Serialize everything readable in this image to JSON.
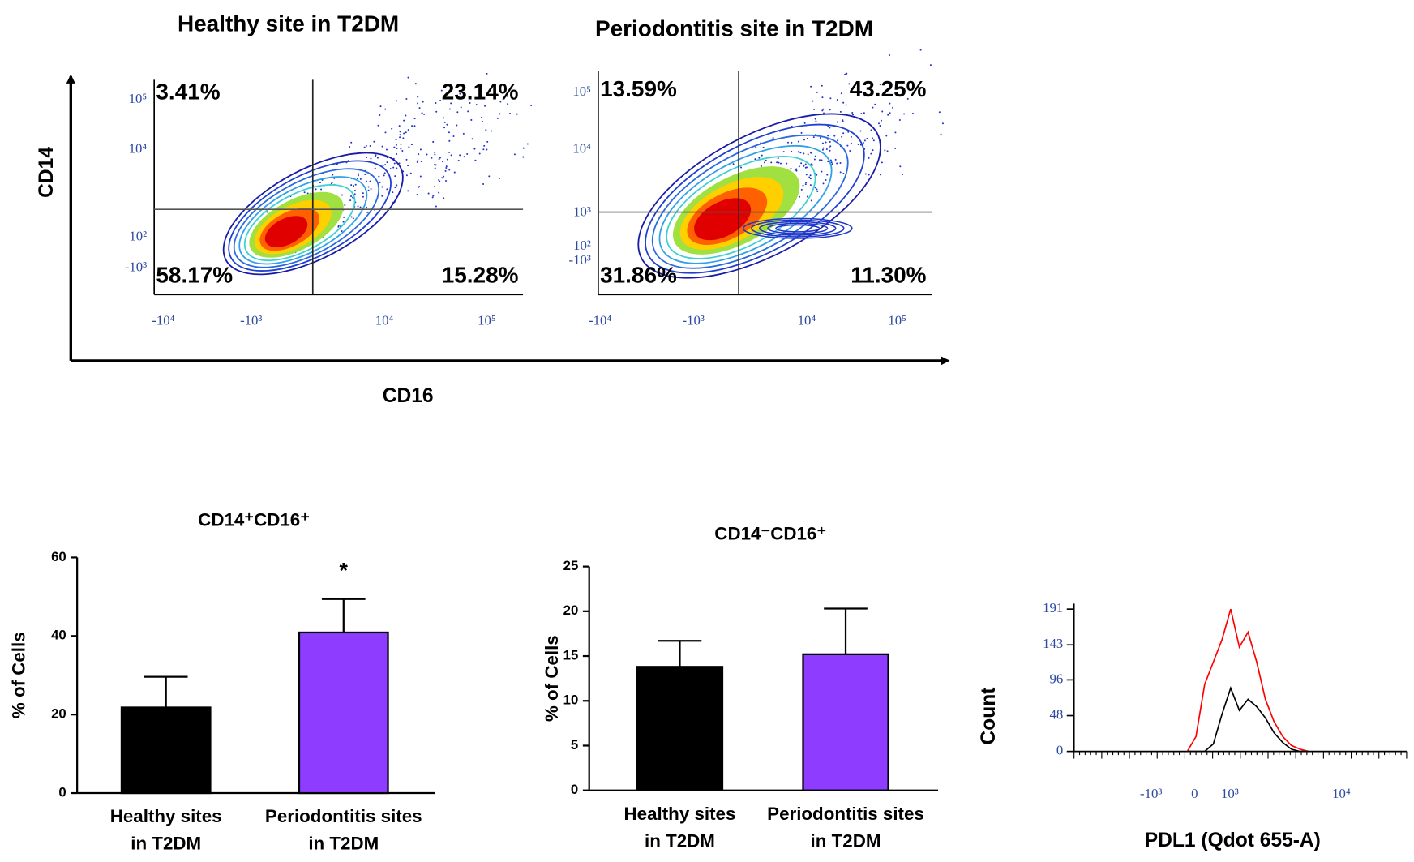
{
  "figure": {
    "y_label": "CD14",
    "x_label": "CD16"
  },
  "chart_data": [
    {
      "type": "flow",
      "title": "Healthy site in T2DM",
      "quadrants": [
        "3.41%",
        "23.14%",
        "58.17%",
        "15.28%"
      ],
      "xtick_labels": [
        "-10⁴",
        "-10³",
        "10⁴",
        "10⁵"
      ],
      "ytick_labels": [
        "10⁵",
        "10⁴",
        "10²",
        "-10³"
      ]
    },
    {
      "type": "flow",
      "title": "Periodontitis site in T2DM",
      "quadrants": [
        "13.59%",
        "43.25%",
        "31.86%",
        "11.30%"
      ],
      "xtick_labels": [
        "-10⁴",
        "-10³",
        "10⁴",
        "10⁵"
      ],
      "ytick_labels": [
        "10⁵",
        "10⁴",
        "10³",
        "10²",
        "-10³"
      ]
    },
    {
      "type": "bar",
      "title": "CD14⁺CD16⁺",
      "y_label": "% of Cells",
      "categories": [
        [
          "Healthy sites",
          "in T2DM"
        ],
        [
          "Periodontitis sites",
          "in T2DM"
        ]
      ],
      "values": [
        21.8,
        40.9
      ],
      "errors": [
        7.8,
        8.5
      ],
      "colors": [
        "#000000",
        "#8e3cff"
      ],
      "annotations": [
        "",
        "*"
      ],
      "ylim": [
        0,
        60
      ],
      "yticks": [
        0,
        20,
        40,
        60
      ]
    },
    {
      "type": "bar",
      "title": "CD14⁻CD16⁺",
      "y_label": "% of Cells",
      "categories": [
        [
          "Healthy sites",
          "in T2DM"
        ],
        [
          "Periodontitis sites",
          "in T2DM"
        ]
      ],
      "values": [
        13.8,
        15.2
      ],
      "errors": [
        2.9,
        5.1
      ],
      "colors": [
        "#000000",
        "#8e3cff"
      ],
      "ylim": [
        0,
        25
      ],
      "yticks": [
        0,
        5,
        10,
        15,
        20,
        25
      ]
    },
    {
      "type": "histogram",
      "y_label": "Count",
      "x_label": "PDL1 (Qdot 655-A)",
      "xtick_labels": [
        "-10³",
        "0",
        "10³",
        "10⁴"
      ],
      "ylim": [
        0,
        191
      ],
      "yticks": [
        0,
        48,
        96,
        143,
        191
      ],
      "series": [
        {
          "color": "#ff0000",
          "values": [
            0,
            20,
            90,
            120,
            150,
            191,
            140,
            160,
            120,
            70,
            40,
            20,
            8,
            3,
            0
          ]
        },
        {
          "color": "#000000",
          "values": [
            0,
            0,
            0,
            10,
            50,
            85,
            55,
            70,
            60,
            45,
            25,
            12,
            3,
            0,
            0
          ]
        }
      ]
    }
  ]
}
